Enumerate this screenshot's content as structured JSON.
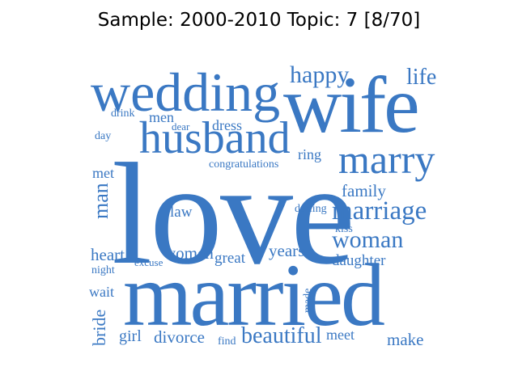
{
  "title": "Sample: 2000-2010 Topic: 7 [8/70]",
  "word_color": "#3a78c3",
  "words": [
    {
      "text": "love",
      "vertical": false
    },
    {
      "text": "married",
      "vertical": false
    },
    {
      "text": "wife",
      "vertical": false
    },
    {
      "text": "wedding",
      "vertical": false
    },
    {
      "text": "husband",
      "vertical": false
    },
    {
      "text": "marry",
      "vertical": false
    },
    {
      "text": "marriage",
      "vertical": false
    },
    {
      "text": "woman",
      "vertical": false
    },
    {
      "text": "happy",
      "vertical": false
    },
    {
      "text": "life",
      "vertical": false
    },
    {
      "text": "beautiful",
      "vertical": false
    },
    {
      "text": "man",
      "vertical": true
    },
    {
      "text": "family",
      "vertical": false
    },
    {
      "text": "women",
      "vertical": false
    },
    {
      "text": "years",
      "vertical": false
    },
    {
      "text": "daughter",
      "vertical": false
    },
    {
      "text": "divorce",
      "vertical": false
    },
    {
      "text": "make",
      "vertical": false
    },
    {
      "text": "heart",
      "vertical": false
    },
    {
      "text": "great",
      "vertical": false
    },
    {
      "text": "law",
      "vertical": false
    },
    {
      "text": "dress",
      "vertical": false
    },
    {
      "text": "ring",
      "vertical": false
    },
    {
      "text": "bride",
      "vertical": true
    },
    {
      "text": "men",
      "vertical": false
    },
    {
      "text": "met",
      "vertical": false
    },
    {
      "text": "wait",
      "vertical": false
    },
    {
      "text": "girl",
      "vertical": false
    },
    {
      "text": "meet",
      "vertical": false
    },
    {
      "text": "congratulations",
      "vertical": false
    },
    {
      "text": "darling",
      "vertical": false
    },
    {
      "text": "drink",
      "vertical": false
    },
    {
      "text": "dear",
      "vertical": false
    },
    {
      "text": "day",
      "vertical": false
    },
    {
      "text": "kiss",
      "vertical": false
    },
    {
      "text": "night",
      "vertical": false
    },
    {
      "text": "excuse",
      "vertical": false
    },
    {
      "text": "find",
      "vertical": false
    },
    {
      "text": "made",
      "vertical": true
    }
  ]
}
